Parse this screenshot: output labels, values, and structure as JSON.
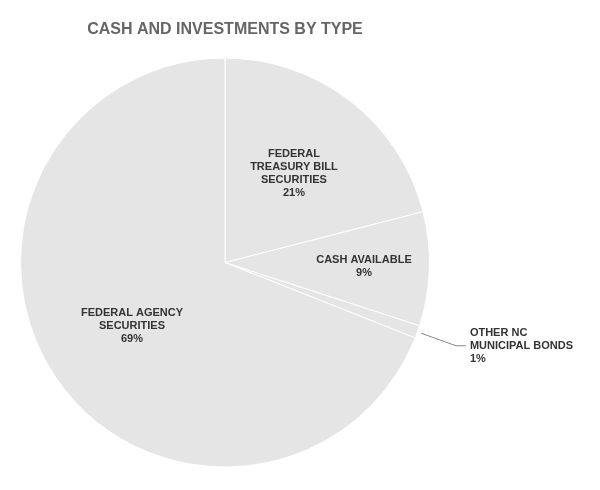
{
  "chart_data": {
    "type": "pie",
    "title": "CASH AND INVESTMENTS BY TYPE",
    "categories": [
      "FEDERAL\nTREASURY BILL\nSECURITIES",
      "CASH AVAILABLE",
      "OTHER NC\nMUNICIPAL BONDS",
      "FEDERAL AGENCY\nSECURITIES"
    ],
    "values": [
      21,
      9,
      1,
      69
    ],
    "value_labels": [
      "21%",
      "9%",
      "1%",
      "69%"
    ],
    "data_labels": true
  }
}
